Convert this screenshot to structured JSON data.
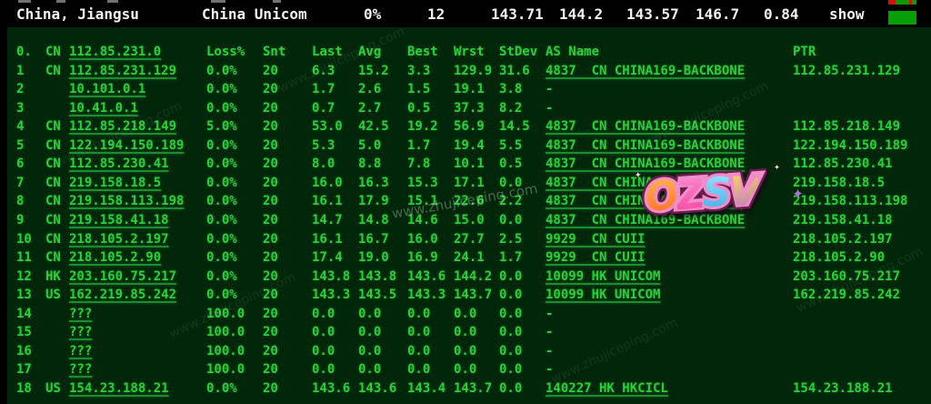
{
  "topbar": {
    "location": "China, Jiangsu",
    "isp": "China Unicom",
    "loss": "0%",
    "snt": "12",
    "last": "143.71",
    "avg": "144.2",
    "best": "143.57",
    "wrst": "146.7",
    "stdev": "0.84",
    "show_label": "show"
  },
  "table": {
    "header": {
      "idx": "0.",
      "cc": "CN",
      "ip": "112.85.231.0",
      "loss": "Loss%",
      "snt": "Snt",
      "last": "Last",
      "avg": "Avg",
      "best": "Best",
      "wrst": "Wrst",
      "stdev": "StDev",
      "asname": "AS Name",
      "ptr": "PTR"
    },
    "rows": [
      {
        "idx": "1",
        "cc": "CN",
        "ip": "112.85.231.129",
        "loss": "0.0%",
        "snt": "20",
        "last": "6.3",
        "avg": "15.2",
        "best": "3.3",
        "wrst": "129.9",
        "stdev": "31.6",
        "as": "4837  CN CHINA169-BACKBONE",
        "ptr": "112.85.231.129"
      },
      {
        "idx": "2",
        "cc": "",
        "ip": "10.101.0.1",
        "loss": "0.0%",
        "snt": "20",
        "last": "1.7",
        "avg": "2.6",
        "best": "1.5",
        "wrst": "19.1",
        "stdev": "3.8",
        "as": "-",
        "ptr": ""
      },
      {
        "idx": "3",
        "cc": "",
        "ip": "10.41.0.1",
        "loss": "0.0%",
        "snt": "20",
        "last": "0.7",
        "avg": "2.7",
        "best": "0.5",
        "wrst": "37.3",
        "stdev": "8.2",
        "as": "-",
        "ptr": ""
      },
      {
        "idx": "4",
        "cc": "CN",
        "ip": "112.85.218.149",
        "loss": "5.0%",
        "snt": "20",
        "last": "53.0",
        "avg": "42.5",
        "best": "19.2",
        "wrst": "56.9",
        "stdev": "14.5",
        "as": "4837  CN CHINA169-BACKBONE",
        "ptr": "112.85.218.149"
      },
      {
        "idx": "5",
        "cc": "CN",
        "ip": "122.194.150.189",
        "loss": "0.0%",
        "snt": "20",
        "last": "5.3",
        "avg": "5.0",
        "best": "1.7",
        "wrst": "19.4",
        "stdev": "5.5",
        "as": "4837  CN CHINA169-BACKBONE",
        "ptr": "122.194.150.189"
      },
      {
        "idx": "6",
        "cc": "CN",
        "ip": "112.85.230.41",
        "loss": "0.0%",
        "snt": "20",
        "last": "8.0",
        "avg": "8.8",
        "best": "7.8",
        "wrst": "10.1",
        "stdev": "0.5",
        "as": "4837  CN CHINA169-BACKBONE",
        "ptr": "112.85.230.41"
      },
      {
        "idx": "7",
        "cc": "CN",
        "ip": "219.158.18.5",
        "loss": "0.0%",
        "snt": "20",
        "last": "16.0",
        "avg": "16.3",
        "best": "15.3",
        "wrst": "17.1",
        "stdev": "0.0",
        "as": "4837  CN CHINA169-BACKBONE",
        "ptr": "219.158.18.5"
      },
      {
        "idx": "8",
        "cc": "CN",
        "ip": "219.158.113.198",
        "loss": "0.0%",
        "snt": "20",
        "last": "16.1",
        "avg": "17.9",
        "best": "15.1",
        "wrst": "22.6",
        "stdev": "2.2",
        "as": "4837  CN CHINA169-BACKBONE",
        "ptr": "219.158.113.198"
      },
      {
        "idx": "9",
        "cc": "CN",
        "ip": "219.158.41.18",
        "loss": "0.0%",
        "snt": "20",
        "last": "14.7",
        "avg": "14.8",
        "best": "14.6",
        "wrst": "15.0",
        "stdev": "0.0",
        "as": "4837  CN CHINA169-BACKBONE",
        "ptr": "219.158.41.18"
      },
      {
        "idx": "10",
        "cc": "CN",
        "ip": "218.105.2.197",
        "loss": "0.0%",
        "snt": "20",
        "last": "16.1",
        "avg": "16.7",
        "best": "16.0",
        "wrst": "27.7",
        "stdev": "2.5",
        "as": "9929  CN CUII",
        "ptr": "218.105.2.197"
      },
      {
        "idx": "11",
        "cc": "CN",
        "ip": "218.105.2.90",
        "loss": "0.0%",
        "snt": "20",
        "last": "17.4",
        "avg": "19.0",
        "best": "16.9",
        "wrst": "24.1",
        "stdev": "1.7",
        "as": "9929  CN CUII",
        "ptr": "218.105.2.90"
      },
      {
        "idx": "12",
        "cc": "HK",
        "ip": "203.160.75.217",
        "loss": "0.0%",
        "snt": "20",
        "last": "143.8",
        "avg": "143.8",
        "best": "143.6",
        "wrst": "144.2",
        "stdev": "0.0",
        "as": "10099 HK UNICOM",
        "ptr": "203.160.75.217"
      },
      {
        "idx": "13",
        "cc": "US",
        "ip": "162.219.85.242",
        "loss": "0.0%",
        "snt": "20",
        "last": "143.3",
        "avg": "143.5",
        "best": "143.3",
        "wrst": "143.7",
        "stdev": "0.0",
        "as": "10099 HK UNICOM",
        "ptr": "162.219.85.242"
      },
      {
        "idx": "14",
        "cc": "",
        "ip": "???",
        "loss": "100.0",
        "snt": "20",
        "last": "0.0",
        "avg": "0.0",
        "best": "0.0",
        "wrst": "0.0",
        "stdev": "0.0",
        "as": "-",
        "ptr": ""
      },
      {
        "idx": "15",
        "cc": "",
        "ip": "???",
        "loss": "100.0",
        "snt": "20",
        "last": "0.0",
        "avg": "0.0",
        "best": "0.0",
        "wrst": "0.0",
        "stdev": "0.0",
        "as": "-",
        "ptr": ""
      },
      {
        "idx": "16",
        "cc": "",
        "ip": "???",
        "loss": "100.0",
        "snt": "20",
        "last": "0.0",
        "avg": "0.0",
        "best": "0.0",
        "wrst": "0.0",
        "stdev": "0.0",
        "as": "-",
        "ptr": ""
      },
      {
        "idx": "17",
        "cc": "",
        "ip": "???",
        "loss": "100.0",
        "snt": "20",
        "last": "0.0",
        "avg": "0.0",
        "best": "0.0",
        "wrst": "0.0",
        "stdev": "0.0",
        "as": "-",
        "ptr": ""
      },
      {
        "idx": "18",
        "cc": "US",
        "ip": "154.23.188.21",
        "loss": "0.0%",
        "snt": "20",
        "last": "143.6",
        "avg": "143.6",
        "best": "143.4",
        "wrst": "143.7",
        "stdev": "0.0",
        "as": "140227 HK HKCICL",
        "ptr": "154.23.188.21"
      }
    ]
  },
  "watermark": {
    "sticker": "OZSV",
    "site": "www.zhujiceping.com"
  },
  "colors": {
    "terminal_bg": "#02260a",
    "terminal_green": "#2dcd3c",
    "topbar_bg": "#010101",
    "topbar_text": "#f2f2f2",
    "indicator_green": "#089e08",
    "indicator_red": "#cf1408"
  }
}
